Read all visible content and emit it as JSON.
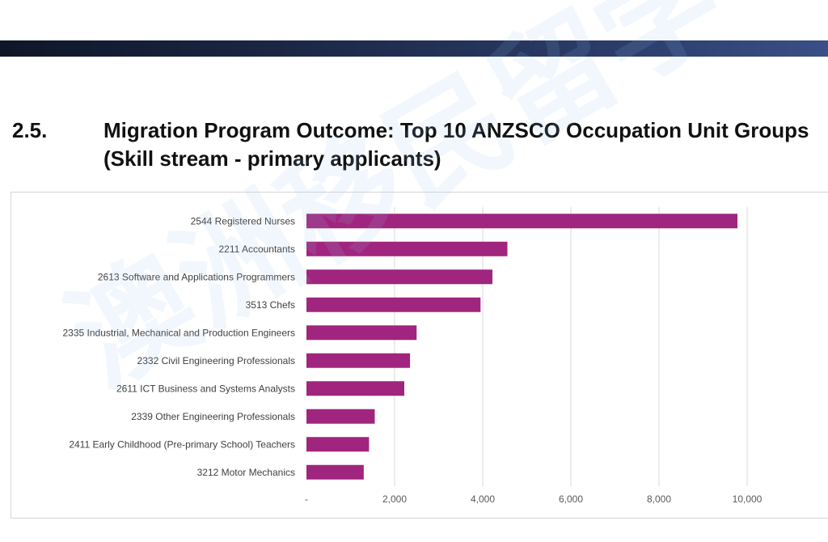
{
  "header": {
    "section_number": "2.5.",
    "section_title": "Migration Program Outcome: Top 10 ANZSCO Occupation Unit Groups (Skill stream - primary applicants)"
  },
  "chart_data": {
    "type": "bar",
    "orientation": "horizontal",
    "title": "Migration Program Outcome: Top 10 ANZSCO Occupation Unit Groups (Skill stream - primary applicants)",
    "xlabel": "",
    "ylabel": "",
    "xlim": [
      0,
      10000
    ],
    "xticks": [
      0,
      2000,
      4000,
      6000,
      8000,
      10000
    ],
    "xtick_labels": [
      "-",
      "2,000",
      "4,000",
      "6,000",
      "8,000",
      "10,000"
    ],
    "grid": true,
    "legend": "none",
    "bar_color": "#a0257f",
    "categories": [
      "2544 Registered Nurses",
      "2211 Accountants",
      "2613 Software and Applications Programmers",
      "3513 Chefs",
      "2335 Industrial, Mechanical and Production Engineers",
      "2332 Civil Engineering Professionals",
      "2611 ICT Business and Systems Analysts",
      "2339 Other Engineering Professionals",
      "2411 Early Childhood (Pre-primary School) Teachers",
      "3212 Motor Mechanics"
    ],
    "values": [
      9780,
      4560,
      4220,
      3950,
      2500,
      2350,
      2220,
      1550,
      1420,
      1300
    ]
  }
}
